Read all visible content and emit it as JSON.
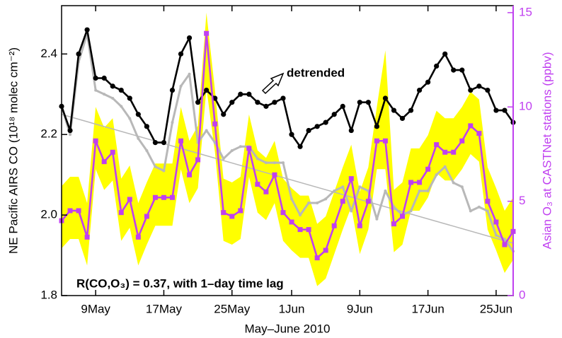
{
  "chart_data": {
    "type": "line",
    "xlabel": "May–June 2010",
    "ylabel": "NE Pacific AIRS CO (10¹⁸ molec cm⁻²)",
    "y2label": "Asian O₃ at CASTNet stations (ppbv)",
    "annotations": [
      "detrended",
      "R(CO,O₃) = 0.37, with 1–day time lag"
    ],
    "x": [
      "2010-05-05",
      "2010-05-06",
      "2010-05-07",
      "2010-05-08",
      "2010-05-09",
      "2010-05-10",
      "2010-05-11",
      "2010-05-12",
      "2010-05-13",
      "2010-05-14",
      "2010-05-15",
      "2010-05-16",
      "2010-05-17",
      "2010-05-18",
      "2010-05-19",
      "2010-05-20",
      "2010-05-21",
      "2010-05-22",
      "2010-05-23",
      "2010-05-24",
      "2010-05-25",
      "2010-05-26",
      "2010-05-27",
      "2010-05-28",
      "2010-05-29",
      "2010-05-30",
      "2010-05-31",
      "2010-06-01",
      "2010-06-02",
      "2010-06-03",
      "2010-06-04",
      "2010-06-05",
      "2010-06-06",
      "2010-06-07",
      "2010-06-08",
      "2010-06-09",
      "2010-06-10",
      "2010-06-11",
      "2010-06-12",
      "2010-06-13",
      "2010-06-14",
      "2010-06-15",
      "2010-06-16",
      "2010-06-17",
      "2010-06-18",
      "2010-06-19",
      "2010-06-20",
      "2010-06-21",
      "2010-06-22",
      "2010-06-23",
      "2010-06-24",
      "2010-06-25",
      "2010-06-26",
      "2010-06-27"
    ],
    "xlim": [
      "2010-05-05",
      "2010-06-27"
    ],
    "xticks": [
      {
        "value": "2010-05-09",
        "label": "9May"
      },
      {
        "value": "2010-05-17",
        "label": "17May"
      },
      {
        "value": "2010-05-25",
        "label": "25May"
      },
      {
        "value": "2010-06-01",
        "label": "1Jun"
      },
      {
        "value": "2010-06-09",
        "label": "9Jun"
      },
      {
        "value": "2010-06-17",
        "label": "17Jun"
      },
      {
        "value": "2010-06-25",
        "label": "25Jun"
      }
    ],
    "ylim": [
      1.8,
      2.52
    ],
    "yticks": [
      1.8,
      {
        "value": 2,
        "label": "2.0"
      },
      2.2,
      2.4
    ],
    "y2lim": [
      0,
      15.37
    ],
    "y2ticks": [
      0,
      5,
      10,
      15
    ],
    "band": {
      "color": "#ffff00",
      "axis": "y2",
      "lower": [
        2.5,
        3.0,
        3.0,
        1.6,
        6.7,
        5.6,
        6.1,
        2.9,
        3.6,
        1.6,
        2.7,
        3.7,
        3.7,
        3.7,
        6.7,
        4.9,
        5.7,
        11.0,
        7.6,
        2.9,
        2.7,
        3.0,
        6.3,
        4.4,
        4.0,
        4.9,
        2.9,
        2.4,
        2.0,
        2.0,
        0.5,
        0.9,
        2.2,
        3.5,
        4.7,
        2.2,
        3.5,
        6.7,
        6.7,
        2.3,
        2.7,
        4.5,
        4.5,
        5.2,
        6.5,
        6.1,
        6.1,
        6.7,
        7.5,
        7.1,
        3.5,
        2.4,
        1.2,
        1.9
      ],
      "upper": [
        5.8,
        6.3,
        6.3,
        4.9,
        10.0,
        8.9,
        9.4,
        6.2,
        6.9,
        4.9,
        6.0,
        7.0,
        7.0,
        7.0,
        10.0,
        8.2,
        9.0,
        15.0,
        10.9,
        6.2,
        6.0,
        6.3,
        9.6,
        7.7,
        7.3,
        8.2,
        6.2,
        5.7,
        5.3,
        5.3,
        3.8,
        4.2,
        5.5,
        6.8,
        8.0,
        5.5,
        6.8,
        10.0,
        13.0,
        5.6,
        6.0,
        7.8,
        7.8,
        8.5,
        9.8,
        9.4,
        9.4,
        10.0,
        10.8,
        10.4,
        6.8,
        5.7,
        4.5,
        5.2
      ]
    },
    "trend": {
      "color": "#b8b8b8",
      "x": [
        "2010-05-05",
        "2010-06-27"
      ],
      "values": [
        2.25,
        1.93
      ]
    },
    "series": [
      {
        "color": "#b8b8b8",
        "marker": "dot",
        "values": [
          2.27,
          2.2,
          2.38,
          2.45,
          2.31,
          2.3,
          2.29,
          2.27,
          2.24,
          2.19,
          2.16,
          2.12,
          2.11,
          2.23,
          2.32,
          2.35,
          2.18,
          2.21,
          2.18,
          2.14,
          2.16,
          2.17,
          2.17,
          2.14,
          2.13,
          2.13,
          2.13,
          2.04,
          2.0,
          2.03,
          2.03,
          2.04,
          2.06,
          2.07,
          2.01,
          2.07,
          2.06,
          1.99,
          2.06,
          2.02,
          2.0,
          2.01,
          2.06,
          2.06,
          2.1,
          2.12,
          2.08,
          2.07,
          2.01,
          2.02,
          2.01,
          1.95,
          1.94,
          1.91
        ]
      },
      {
        "color": "#000000",
        "marker": "circle",
        "values": [
          2.27,
          2.21,
          2.4,
          2.46,
          2.34,
          2.34,
          2.32,
          2.31,
          2.29,
          2.25,
          2.22,
          2.18,
          2.18,
          2.31,
          2.4,
          2.44,
          2.28,
          2.31,
          2.29,
          2.25,
          2.28,
          2.3,
          2.3,
          2.28,
          2.27,
          2.28,
          2.29,
          2.2,
          2.17,
          2.21,
          2.22,
          2.23,
          2.25,
          2.27,
          2.21,
          2.28,
          2.28,
          2.22,
          2.29,
          2.26,
          2.24,
          2.26,
          2.31,
          2.33,
          2.37,
          2.4,
          2.36,
          2.36,
          2.31,
          2.32,
          2.31,
          2.26,
          2.26,
          2.23
        ]
      },
      {
        "color": "#c040f0",
        "marker": "square",
        "axis": "y2",
        "values": [
          3.97,
          4.5,
          4.5,
          3.1,
          8.2,
          7.1,
          7.6,
          4.4,
          5.1,
          3.1,
          4.2,
          5.2,
          5.2,
          5.2,
          8.2,
          6.4,
          7.2,
          13.9,
          9.1,
          4.4,
          4.2,
          4.5,
          7.8,
          5.9,
          5.5,
          6.4,
          4.4,
          3.9,
          3.5,
          3.5,
          2.0,
          2.4,
          3.7,
          5.0,
          6.2,
          3.7,
          5.0,
          8.2,
          8.2,
          3.8,
          4.2,
          6.0,
          6.0,
          6.7,
          8.0,
          7.6,
          7.6,
          8.2,
          9.0,
          8.6,
          5.0,
          3.9,
          2.7,
          3.4
        ]
      }
    ]
  }
}
